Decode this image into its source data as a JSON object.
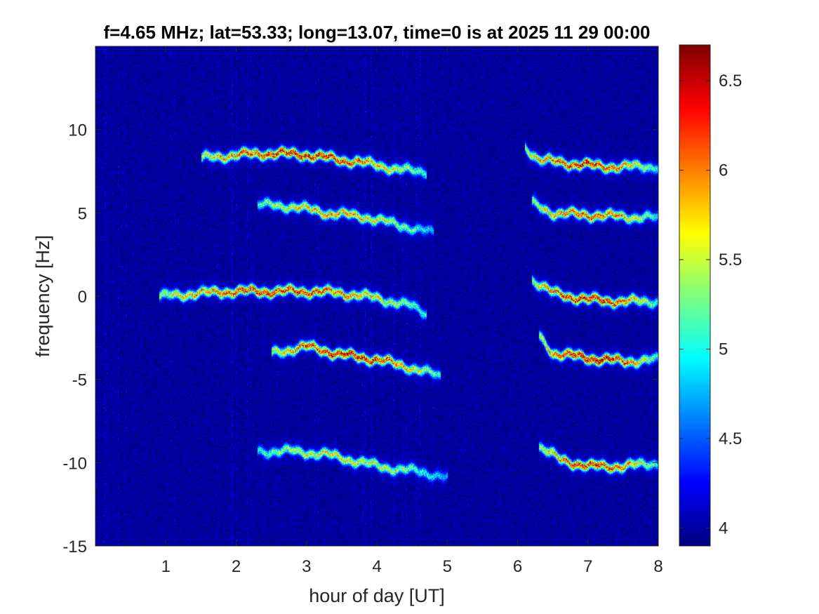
{
  "chart_data": {
    "type": "heatmap",
    "title": "f=4.65 MHz;  lat=53.33; long=13.07, time=0 is at 2025 11 29 00:00",
    "xlabel": "hour of day [UT]",
    "ylabel": "frequency [Hz]",
    "xlim": [
      0,
      8
    ],
    "ylim": [
      -15,
      15
    ],
    "x_ticks": [
      1,
      2,
      3,
      4,
      5,
      6,
      7,
      8
    ],
    "y_ticks": [
      -15,
      -10,
      -5,
      0,
      5,
      10
    ],
    "colormap": "jet",
    "color_range": [
      3.9,
      6.7
    ],
    "colorbar_ticks": [
      4,
      4.5,
      5,
      5.5,
      6,
      6.5
    ],
    "background_level": 3.95,
    "traces": [
      {
        "points": [
          [
            1.5,
            8.3
          ],
          [
            2.0,
            8.5
          ],
          [
            2.5,
            8.6
          ],
          [
            3.0,
            8.5
          ],
          [
            3.5,
            8.2
          ],
          [
            4.0,
            7.9
          ],
          [
            4.3,
            7.6
          ],
          [
            4.7,
            7.5
          ]
        ],
        "peak_level": 6.6
      },
      {
        "points": [
          [
            2.3,
            5.5
          ],
          [
            2.8,
            5.4
          ],
          [
            3.3,
            5.0
          ],
          [
            3.8,
            4.8
          ],
          [
            4.2,
            4.4
          ],
          [
            4.5,
            4.1
          ],
          [
            4.8,
            3.8
          ]
        ],
        "peak_level": 6.0
      },
      {
        "points": [
          [
            0.9,
            0.0
          ],
          [
            1.5,
            0.2
          ],
          [
            2.0,
            0.3
          ],
          [
            2.5,
            0.3
          ],
          [
            3.0,
            0.3
          ],
          [
            3.5,
            0.2
          ],
          [
            4.0,
            -0.1
          ],
          [
            4.5,
            -0.6
          ],
          [
            4.7,
            -1.0
          ]
        ],
        "peak_level": 6.5
      },
      {
        "points": [
          [
            2.5,
            -3.4
          ],
          [
            3.0,
            -3.0
          ],
          [
            3.5,
            -3.5
          ],
          [
            4.0,
            -3.8
          ],
          [
            4.5,
            -4.3
          ],
          [
            4.9,
            -4.8
          ]
        ],
        "peak_level": 6.6
      },
      {
        "points": [
          [
            2.3,
            -9.3
          ],
          [
            2.8,
            -9.3
          ],
          [
            3.3,
            -9.5
          ],
          [
            3.8,
            -10.0
          ],
          [
            4.3,
            -10.4
          ],
          [
            4.6,
            -10.5
          ],
          [
            5.0,
            -10.9
          ]
        ],
        "peak_level": 5.8
      },
      {
        "points": [
          [
            6.1,
            9.0
          ],
          [
            6.3,
            8.2
          ],
          [
            6.7,
            8.0
          ],
          [
            7.2,
            7.8
          ],
          [
            7.6,
            7.8
          ],
          [
            8.0,
            7.8
          ]
        ],
        "peak_level": 6.5
      },
      {
        "points": [
          [
            6.2,
            5.6
          ],
          [
            6.5,
            5.0
          ],
          [
            7.0,
            4.9
          ],
          [
            7.5,
            4.8
          ],
          [
            8.0,
            4.7
          ]
        ],
        "peak_level": 6.3
      },
      {
        "points": [
          [
            6.2,
            1.0
          ],
          [
            6.5,
            0.2
          ],
          [
            7.0,
            -0.2
          ],
          [
            7.5,
            -0.3
          ],
          [
            8.0,
            -0.3
          ]
        ],
        "peak_level": 6.6
      },
      {
        "points": [
          [
            6.3,
            -2.4
          ],
          [
            6.5,
            -3.4
          ],
          [
            7.0,
            -3.7
          ],
          [
            7.5,
            -3.9
          ],
          [
            8.0,
            -3.8
          ]
        ],
        "peak_level": 6.7
      },
      {
        "points": [
          [
            6.3,
            -9.0
          ],
          [
            6.6,
            -9.8
          ],
          [
            7.0,
            -10.2
          ],
          [
            7.5,
            -10.2
          ],
          [
            8.0,
            -10.0
          ]
        ],
        "peak_level": 6.5
      }
    ]
  }
}
